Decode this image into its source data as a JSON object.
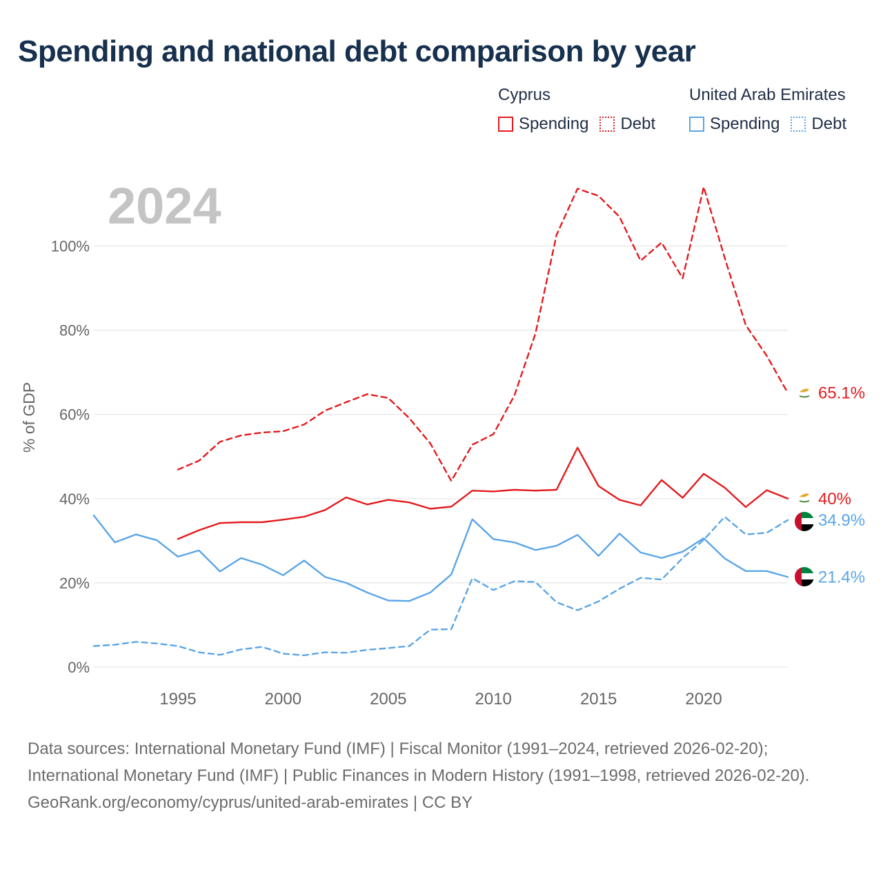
{
  "title": "Spending and national debt comparison by year",
  "legend": {
    "groups": [
      {
        "name": "Cyprus",
        "color": "#e31a1c",
        "items": [
          {
            "label": "Spending",
            "style": "solid"
          },
          {
            "label": "Debt",
            "style": "dotted"
          }
        ]
      },
      {
        "name": "United Arab Emirates",
        "color": "#5aa5e6",
        "items": [
          {
            "label": "Spending",
            "style": "solid"
          },
          {
            "label": "Debt",
            "style": "dotted"
          }
        ]
      }
    ]
  },
  "chart_data": {
    "type": "line",
    "year_label": "2024",
    "ylabel": "% of GDP",
    "xlim": [
      1991,
      2024
    ],
    "ylim": [
      0,
      100
    ],
    "x_ticks": [
      1995,
      2000,
      2005,
      2010,
      2015,
      2020
    ],
    "y_ticks": [
      0,
      20,
      40,
      60,
      80,
      100
    ],
    "y_tick_labels": [
      "0%",
      "20%",
      "40%",
      "60%",
      "80%",
      "100%"
    ],
    "series": [
      {
        "name": "Cyprus Debt",
        "country": "Cyprus",
        "color": "#e31a1c",
        "dash": true,
        "end_label": "65.1%",
        "x": [
          1995,
          1996,
          1997,
          1998,
          1999,
          2000,
          2001,
          2002,
          2003,
          2004,
          2005,
          2006,
          2007,
          2008,
          2009,
          2010,
          2011,
          2012,
          2013,
          2014,
          2015,
          2016,
          2017,
          2018,
          2019,
          2020,
          2021,
          2022,
          2023,
          2024
        ],
        "values": [
          46.9,
          49.0,
          53.5,
          55.0,
          55.7,
          56.0,
          57.6,
          60.9,
          62.9,
          64.8,
          63.9,
          59.1,
          53.1,
          44.2,
          52.8,
          55.3,
          64.5,
          79.2,
          102.6,
          113.6,
          111.9,
          106.9,
          96.5,
          100.8,
          92.3,
          114.0,
          97.2,
          81.2,
          73.9,
          65.1
        ]
      },
      {
        "name": "Cyprus Spending",
        "country": "Cyprus",
        "color": "#e31a1c",
        "dash": false,
        "end_label": "40%",
        "x": [
          1995,
          1996,
          1997,
          1998,
          1999,
          2000,
          2001,
          2002,
          2003,
          2004,
          2005,
          2006,
          2007,
          2008,
          2009,
          2010,
          2011,
          2012,
          2013,
          2014,
          2015,
          2016,
          2017,
          2018,
          2019,
          2020,
          2021,
          2022,
          2023,
          2024
        ],
        "values": [
          30.4,
          32.5,
          34.2,
          34.4,
          34.4,
          35.0,
          35.7,
          37.3,
          40.3,
          38.6,
          39.7,
          39.1,
          37.6,
          38.1,
          41.9,
          41.7,
          42.1,
          41.9,
          42.1,
          52.1,
          43.0,
          39.7,
          38.4,
          44.4,
          40.2,
          45.9,
          42.6,
          38.0,
          42.0,
          40.0
        ]
      },
      {
        "name": "United Arab Emirates Spending",
        "country": "United Arab Emirates",
        "color": "#5aa5e6",
        "dash": false,
        "end_label": "21.4%",
        "x": [
          1991,
          1992,
          1993,
          1994,
          1995,
          1996,
          1997,
          1998,
          1999,
          2000,
          2001,
          2002,
          2003,
          2004,
          2005,
          2006,
          2007,
          2008,
          2009,
          2010,
          2011,
          2012,
          2013,
          2014,
          2015,
          2016,
          2017,
          2018,
          2019,
          2020,
          2021,
          2022,
          2023,
          2024
        ],
        "values": [
          36.0,
          29.6,
          31.5,
          30.1,
          26.2,
          27.7,
          22.7,
          25.9,
          24.3,
          21.8,
          25.3,
          21.4,
          20.0,
          17.7,
          15.8,
          15.7,
          17.7,
          22.0,
          35.1,
          30.4,
          29.6,
          27.8,
          28.8,
          31.4,
          26.4,
          31.7,
          27.2,
          25.9,
          27.4,
          30.6,
          25.8,
          22.8,
          22.8,
          21.4
        ]
      },
      {
        "name": "United Arab Emirates Debt",
        "country": "United Arab Emirates",
        "color": "#5aa5e6",
        "dash": true,
        "end_label": "34.9%",
        "x": [
          1991,
          1992,
          1993,
          1994,
          1995,
          1996,
          1997,
          1998,
          1999,
          2000,
          2001,
          2002,
          2003,
          2004,
          2005,
          2006,
          2007,
          2008,
          2009,
          2010,
          2011,
          2012,
          2013,
          2014,
          2015,
          2016,
          2017,
          2018,
          2019,
          2020,
          2021,
          2022,
          2023,
          2024
        ],
        "values": [
          5.0,
          5.3,
          6.0,
          5.6,
          5.0,
          3.5,
          2.9,
          4.2,
          4.8,
          3.2,
          2.8,
          3.5,
          3.4,
          4.1,
          4.5,
          5.0,
          8.9,
          9.0,
          21.1,
          18.3,
          20.4,
          20.2,
          15.4,
          13.5,
          15.6,
          18.6,
          21.2,
          20.8,
          25.9,
          30.2,
          35.7,
          31.5,
          31.9,
          34.9
        ]
      }
    ]
  },
  "footer": {
    "sources": "Data sources: International Monetary Fund (IMF) | Fiscal Monitor (1991–2024, retrieved 2026-02-20); International Monetary Fund (IMF) | Public Finances in Modern History (1991–1998, retrieved 2026-02-20).",
    "credit": "GeoRank.org/economy/cyprus/united-arab-emirates | CC BY"
  }
}
